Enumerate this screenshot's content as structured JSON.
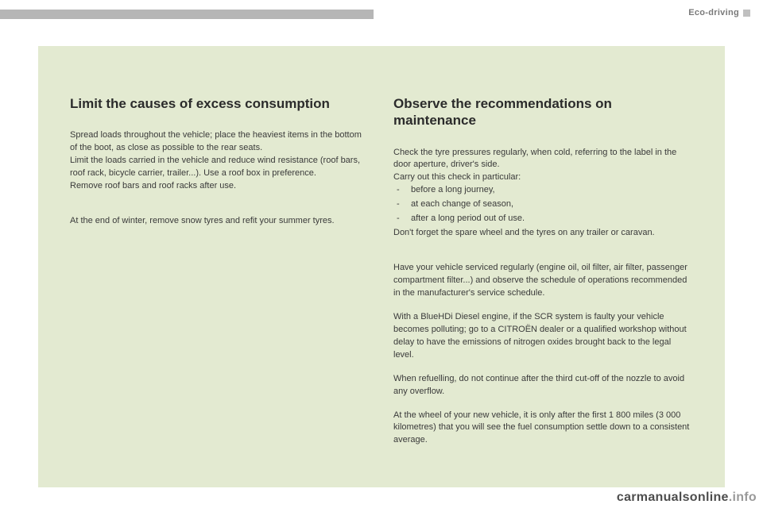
{
  "header": {
    "category": "Eco-driving"
  },
  "colors": {
    "page_bg": "#ffffff",
    "content_bg": "#e3ead1",
    "top_bar": "#b6b6b6",
    "title_color": "#2b2b2b",
    "body_color": "#3a3a3a",
    "watermark_main": "#4d4d4d",
    "watermark_sub": "#999999"
  },
  "left": {
    "title": "Limit the causes of excess consumption",
    "p1": "Spread loads throughout the vehicle; place the heaviest items in the bottom of the boot, as close as possible to the rear seats.",
    "p2": "Limit the loads carried in the vehicle and reduce wind resistance (roof bars, roof rack, bicycle carrier, trailer...). Use a roof box in preference.",
    "p3": "Remove roof bars and roof racks after use.",
    "p4": "At the end of winter, remove snow tyres and refit your summer tyres."
  },
  "right": {
    "title": "Observe the recommendations on maintenance",
    "p1": "Check the tyre pressures regularly, when cold, referring to the label in the door aperture, driver's side.",
    "p2": "Carry out this check in particular:",
    "bullets": [
      "before a long journey,",
      "at each change of season,",
      "after a long period out of use."
    ],
    "p3": "Don't forget the spare wheel and the tyres on any trailer or caravan.",
    "p4": "Have your vehicle serviced regularly (engine oil, oil filter, air filter, passenger compartment filter...) and observe the schedule of operations recommended in the manufacturer's service schedule.",
    "p5": "With a BlueHDi Diesel engine, if the SCR system is faulty your vehicle becomes polluting; go to a CITROËN dealer or a qualified workshop without delay to have the emissions of nitrogen oxides brought back to the legal level.",
    "p6": "When refuelling, do not continue after the third cut-off of the nozzle to avoid any overflow.",
    "p7": "At the wheel of your new vehicle, it is only after the first 1 800 miles (3 000 kilometres) that you will see the fuel consumption settle down to a consistent average."
  },
  "watermark": {
    "main": "carmanualsonline",
    "sub": ".info"
  }
}
